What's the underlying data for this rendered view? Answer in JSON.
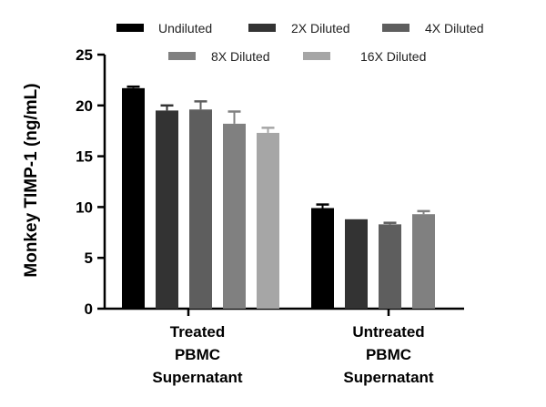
{
  "chart_data": {
    "type": "bar",
    "title": "",
    "xlabel": "",
    "ylabel": "Monkey TIMP-1 (ng/mL)",
    "ylim": [
      0,
      25
    ],
    "yticks": [
      0,
      5,
      10,
      15,
      20,
      25
    ],
    "categories": [
      [
        "Treated",
        "PBMC",
        "Supernatant"
      ],
      [
        "Untreated",
        "PBMC",
        "Supernatant"
      ]
    ],
    "legend_position": "top",
    "series": [
      {
        "name": "Undiluted",
        "color": "#000000",
        "values": [
          21.7,
          9.9
        ],
        "errors": [
          0.15,
          0.35
        ]
      },
      {
        "name": "2X Diluted",
        "color": "#333333",
        "values": [
          19.5,
          8.8
        ],
        "errors": [
          0.5,
          0.0
        ]
      },
      {
        "name": "4X Diluted",
        "color": "#5e5e5e",
        "values": [
          19.6,
          8.3
        ],
        "errors": [
          0.8,
          0.15
        ]
      },
      {
        "name": "8X Diluted",
        "color": "#808080",
        "values": [
          18.2,
          9.3
        ],
        "errors": [
          1.2,
          0.3
        ]
      },
      {
        "name": "16X Diluted",
        "color": "#a6a6a6",
        "values": [
          17.3,
          null
        ],
        "errors": [
          0.5,
          null
        ]
      }
    ]
  }
}
